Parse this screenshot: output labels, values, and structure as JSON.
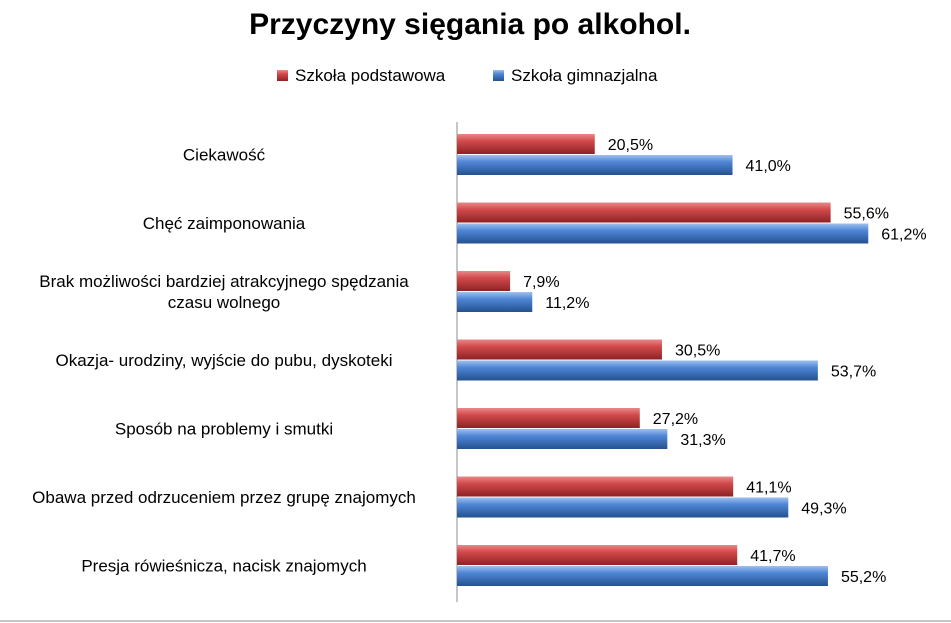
{
  "chart_data": {
    "type": "bar",
    "orientation": "horizontal",
    "title": "Przyczyny sięgania po alkohol.",
    "categories": [
      "Ciekawość",
      "Chęć zaimponowania",
      "Brak możliwości bardziej atrakcyjnego spędzania czasu wolnego",
      "Okazja- urodziny, wyjście do pubu, dyskoteki",
      "Sposób na problemy i smutki",
      "Obawa przed odrzuceniem przez grupę znajomych",
      "Presja rówieśnicza, nacisk znajomych"
    ],
    "category_lines": [
      [
        "Ciekawość"
      ],
      [
        "Chęć zaimponowania"
      ],
      [
        "Brak możliwości bardziej atrakcyjnego spędzania",
        "czasu wolnego"
      ],
      [
        "Okazja- urodziny, wyjście do pubu, dyskoteki"
      ],
      [
        "Sposób na problemy i smutki"
      ],
      [
        "Obawa przed odrzuceniem przez grupę znajomych"
      ],
      [
        "Presja rówieśnicza, nacisk znajomych"
      ]
    ],
    "series": [
      {
        "name": "Szkoła podstawowa",
        "color": "#C0393B",
        "values": [
          20.5,
          55.6,
          7.9,
          30.5,
          27.2,
          41.1,
          41.7
        ],
        "labels": [
          "20,5%",
          "55,6%",
          "7,9%",
          "30,5%",
          "27,2%",
          "41,1%",
          "41,7%"
        ]
      },
      {
        "name": "Szkoła gimnazjalna",
        "color": "#3F78C9",
        "values": [
          41.0,
          61.2,
          11.2,
          53.7,
          31.3,
          49.3,
          55.2
        ],
        "labels": [
          "41,0%",
          "61,2%",
          "11,2%",
          "53,7%",
          "31,3%",
          "49,3%",
          "55,2%"
        ]
      }
    ],
    "xlim": [
      0,
      70
    ],
    "legend_position": "top",
    "grid": false,
    "xlabel": "",
    "ylabel": ""
  }
}
